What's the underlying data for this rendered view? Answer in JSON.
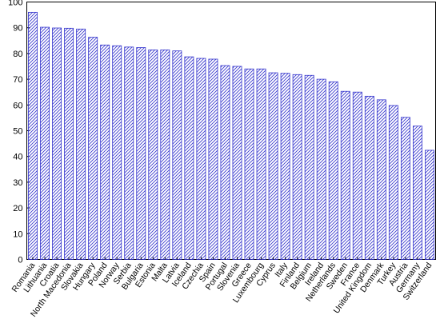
{
  "chart_data": {
    "type": "bar",
    "title": "",
    "xlabel": "",
    "ylabel": "",
    "ylim": [
      0,
      100
    ],
    "yticks": [
      0,
      10,
      20,
      30,
      40,
      50,
      60,
      70,
      80,
      90,
      100
    ],
    "grid": false,
    "bar_color": "#3333cc",
    "categories": [
      "Romania",
      "Lithuania",
      "Croatia",
      "North Macedonia",
      "Slovakia",
      "Hungary",
      "Poland",
      "Norway",
      "Serbia",
      "Bulgaria",
      "Estonia",
      "Malta",
      "Latvia",
      "Iceland",
      "Czechia",
      "Spain",
      "Portugal",
      "Slovenia",
      "Greece",
      "Luxembourg",
      "Cyprus",
      "Italy",
      "Finland",
      "Belgium",
      "Ireland",
      "Netherlands",
      "Sweden",
      "France",
      "United Kingdom",
      "Denmark",
      "Turkey",
      "Austria",
      "Germany",
      "Switzerland"
    ],
    "values": [
      96,
      90.2,
      89.9,
      89.8,
      89.5,
      86.3,
      83.3,
      83.0,
      82.5,
      82.3,
      81.4,
      81.4,
      81.0,
      78.7,
      78.1,
      77.8,
      75.3,
      75.0,
      74.0,
      74.0,
      72.5,
      72.3,
      71.8,
      71.5,
      70.0,
      69.0,
      65.3,
      65.0,
      63.4,
      62.0,
      59.8,
      55.2,
      51.8,
      42.4
    ]
  }
}
